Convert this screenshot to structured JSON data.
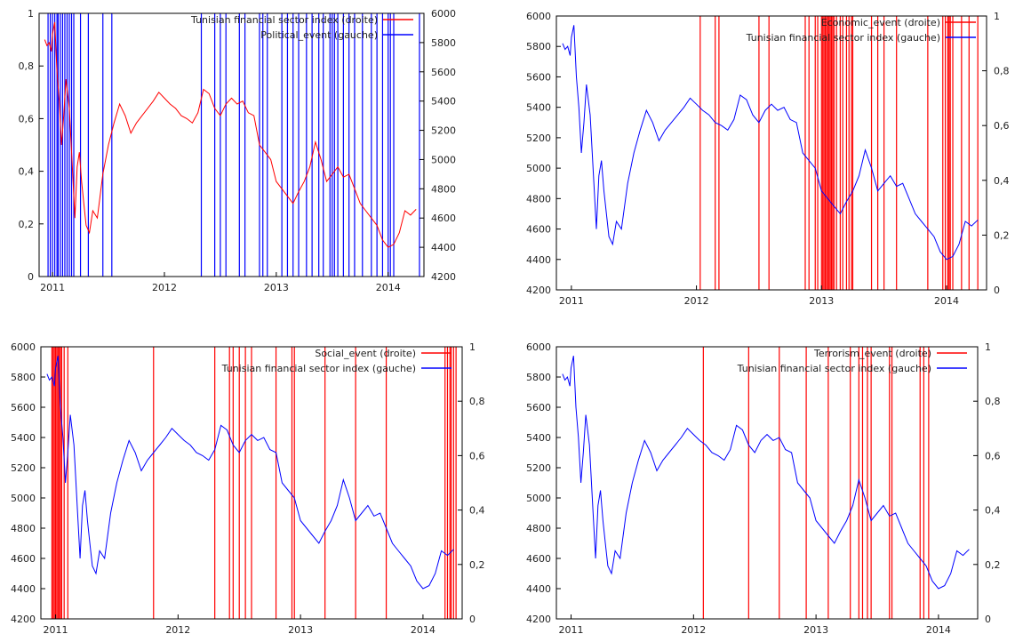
{
  "colors": {
    "red": "#ff0000",
    "blue": "#0000ff",
    "axis": "#000000"
  },
  "chart_data": [
    {
      "type": "line",
      "event_side": "left",
      "event_color": "red_axis_blue_lines",
      "x_ticks": [
        2011,
        2012,
        2013,
        2014
      ],
      "xlim": [
        2010.88,
        2014.32
      ],
      "left_axis": {
        "ylim": [
          0,
          1
        ],
        "ticks": [
          0,
          0.2,
          0.4,
          0.6,
          0.8,
          1
        ],
        "tick_labels": [
          "0",
          "0,2",
          "0,4",
          "0,6",
          "0,8",
          "1"
        ]
      },
      "right_axis": {
        "ylim": [
          4200,
          6000
        ],
        "ticks": [
          4200,
          4400,
          4600,
          4800,
          5000,
          5200,
          5400,
          5600,
          5800,
          6000
        ],
        "tick_labels": [
          "4200",
          "4400",
          "4600",
          "4800",
          "5000",
          "5200",
          "5400",
          "5600",
          "5800",
          "6000"
        ]
      },
      "series": [
        {
          "name": "Tunisian financial sector index (droite)",
          "kind": "index",
          "color": "#ff0000",
          "axis": "right"
        },
        {
          "name": "Political_event  (gauche)",
          "kind": "events",
          "color": "#0000ff",
          "axis": "left",
          "events": [
            2010.96,
            2010.98,
            2011.0,
            2011.02,
            2011.04,
            2011.05,
            2011.07,
            2011.09,
            2011.11,
            2011.13,
            2011.15,
            2011.17,
            2011.19,
            2011.25,
            2011.32,
            2011.45,
            2011.53,
            2012.33,
            2012.45,
            2012.5,
            2012.55,
            2012.67,
            2012.72,
            2012.85,
            2012.88,
            2012.92,
            2013.05,
            2013.1,
            2013.15,
            2013.2,
            2013.27,
            2013.32,
            2013.38,
            2013.42,
            2013.48,
            2013.5,
            2013.52,
            2013.55,
            2013.6,
            2013.65,
            2013.7,
            2013.77,
            2013.85,
            2013.9,
            2013.95,
            2014.0,
            2014.02,
            2014.05,
            2014.28
          ]
        }
      ]
    },
    {
      "type": "line",
      "event_side": "right",
      "x_ticks": [
        2011,
        2012,
        2013,
        2014
      ],
      "xlim": [
        2010.88,
        2014.32
      ],
      "left_axis": {
        "ylim": [
          4200,
          6000
        ],
        "ticks": [
          4200,
          4400,
          4600,
          4800,
          5000,
          5200,
          5400,
          5600,
          5800,
          6000
        ],
        "tick_labels": [
          "4200",
          "4400",
          "4600",
          "4800",
          "5000",
          "5200",
          "5400",
          "5600",
          "5800",
          "6000"
        ]
      },
      "right_axis": {
        "ylim": [
          0,
          1
        ],
        "ticks": [
          0,
          0.2,
          0.4,
          0.6,
          0.8,
          1
        ],
        "tick_labels": [
          "0",
          "0,2",
          "0,4",
          "0,6",
          "0,8",
          "1"
        ]
      },
      "series": [
        {
          "name": "Economic_event  (droite)",
          "kind": "events",
          "color": "#ff0000",
          "axis": "right",
          "events": [
            2012.03,
            2012.15,
            2012.18,
            2012.5,
            2012.58,
            2012.87,
            2012.9,
            2012.95,
            2012.97,
            2013.0,
            2013.01,
            2013.02,
            2013.03,
            2013.04,
            2013.05,
            2013.06,
            2013.07,
            2013.08,
            2013.09,
            2013.1,
            2013.12,
            2013.15,
            2013.17,
            2013.2,
            2013.22,
            2013.24,
            2013.25,
            2013.4,
            2013.45,
            2013.5,
            2013.6,
            2013.85,
            2013.97,
            2013.99,
            2014.01,
            2014.02,
            2014.03,
            2014.05,
            2014.12,
            2014.18,
            2014.25
          ]
        },
        {
          "name": "Tunisian financial sector index (gauche)",
          "kind": "index",
          "color": "#0000ff",
          "axis": "left"
        }
      ]
    },
    {
      "type": "line",
      "event_side": "right",
      "x_ticks": [
        2011,
        2012,
        2013,
        2014
      ],
      "xlim": [
        2010.88,
        2014.32
      ],
      "left_axis": {
        "ylim": [
          4200,
          6000
        ],
        "ticks": [
          4200,
          4400,
          4600,
          4800,
          5000,
          5200,
          5400,
          5600,
          5800,
          6000
        ],
        "tick_labels": [
          "4200",
          "4400",
          "4600",
          "4800",
          "5000",
          "5200",
          "5400",
          "5600",
          "5800",
          "6000"
        ]
      },
      "right_axis": {
        "ylim": [
          0,
          1
        ],
        "ticks": [
          0,
          0.2,
          0.4,
          0.6,
          0.8,
          1
        ],
        "tick_labels": [
          "0",
          "0,2",
          "0,4",
          "0,6",
          "0,8",
          "1"
        ]
      },
      "series": [
        {
          "name": "Social_event  (droite)",
          "kind": "events",
          "color": "#ff0000",
          "axis": "right",
          "events": [
            2010.97,
            2010.98,
            2010.99,
            2011.0,
            2011.01,
            2011.02,
            2011.03,
            2011.04,
            2011.05,
            2011.07,
            2011.1,
            2011.8,
            2012.3,
            2012.42,
            2012.45,
            2012.5,
            2012.55,
            2012.6,
            2012.8,
            2012.93,
            2012.95,
            2013.2,
            2013.45,
            2013.7,
            2014.18,
            2014.2,
            2014.22,
            2014.23,
            2014.25,
            2014.27
          ]
        },
        {
          "name": "Tunisian financial sector index (gauche)",
          "kind": "index",
          "color": "#0000ff",
          "axis": "left"
        }
      ]
    },
    {
      "type": "line",
      "event_side": "right",
      "x_ticks": [
        2011,
        2012,
        2013,
        2014
      ],
      "xlim": [
        2010.88,
        2014.32
      ],
      "left_axis": {
        "ylim": [
          4200,
          6000
        ],
        "ticks": [
          4200,
          4400,
          4600,
          4800,
          5000,
          5200,
          5400,
          5600,
          5800,
          6000
        ],
        "tick_labels": [
          "4200",
          "4400",
          "4600",
          "4800",
          "5000",
          "5200",
          "5400",
          "5600",
          "5800",
          "6000"
        ]
      },
      "right_axis": {
        "ylim": [
          0,
          1
        ],
        "ticks": [
          0,
          0.2,
          0.4,
          0.6,
          0.8,
          1
        ],
        "tick_labels": [
          "0",
          "0,2",
          "0,4",
          "0,6",
          "0,8",
          "1"
        ]
      },
      "series": [
        {
          "name": "Terrorism_event  (droite)",
          "kind": "events",
          "color": "#ff0000",
          "axis": "right",
          "events": [
            2012.08,
            2012.45,
            2012.7,
            2012.92,
            2013.1,
            2013.28,
            2013.35,
            2013.38,
            2013.42,
            2013.45,
            2013.6,
            2013.62,
            2013.85,
            2013.88,
            2013.92
          ]
        },
        {
          "name": "Tunisian financial sector index (gauche)",
          "kind": "index",
          "color": "#0000ff",
          "axis": "left"
        }
      ]
    }
  ],
  "index_series": {
    "x": [
      2010.93,
      2010.95,
      2010.97,
      2010.99,
      2011.0,
      2011.02,
      2011.04,
      2011.06,
      2011.08,
      2011.1,
      2011.12,
      2011.15,
      2011.18,
      2011.2,
      2011.22,
      2011.24,
      2011.26,
      2011.28,
      2011.3,
      2011.33,
      2011.36,
      2011.4,
      2011.45,
      2011.5,
      2011.55,
      2011.6,
      2011.65,
      2011.7,
      2011.75,
      2011.8,
      2011.85,
      2011.9,
      2011.95,
      2012.0,
      2012.05,
      2012.1,
      2012.15,
      2012.2,
      2012.25,
      2012.3,
      2012.35,
      2012.4,
      2012.45,
      2012.5,
      2012.55,
      2012.6,
      2012.65,
      2012.7,
      2012.75,
      2012.8,
      2012.85,
      2012.9,
      2012.95,
      2013.0,
      2013.05,
      2013.1,
      2013.15,
      2013.2,
      2013.25,
      2013.3,
      2013.35,
      2013.4,
      2013.45,
      2013.5,
      2013.55,
      2013.6,
      2013.65,
      2013.7,
      2013.75,
      2013.8,
      2013.85,
      2013.9,
      2013.95,
      2014.0,
      2014.05,
      2014.1,
      2014.15,
      2014.2,
      2014.25
    ],
    "y": [
      5820,
      5780,
      5800,
      5740,
      5860,
      5940,
      5600,
      5400,
      5100,
      5300,
      5550,
      5350,
      4900,
      4600,
      4950,
      5050,
      4850,
      4700,
      4550,
      4500,
      4650,
      4600,
      4900,
      5100,
      5250,
      5380,
      5300,
      5180,
      5250,
      5300,
      5350,
      5400,
      5460,
      5420,
      5380,
      5350,
      5300,
      5280,
      5250,
      5320,
      5480,
      5450,
      5350,
      5300,
      5380,
      5420,
      5380,
      5400,
      5320,
      5300,
      5100,
      5050,
      5000,
      4850,
      4800,
      4750,
      4700,
      4780,
      4850,
      4950,
      5120,
      5000,
      4850,
      4900,
      4950,
      4880,
      4900,
      4800,
      4700,
      4650,
      4600,
      4550,
      4450,
      4400,
      4420,
      4500,
      4650,
      4620,
      4660
    ]
  }
}
